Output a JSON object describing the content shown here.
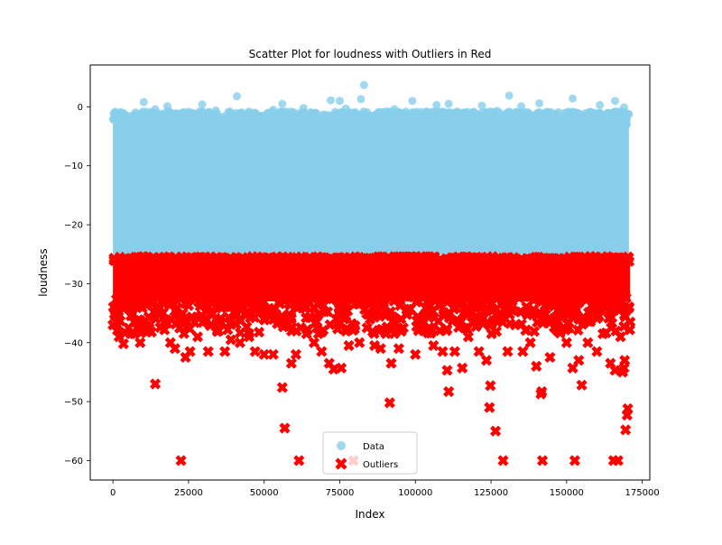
{
  "chart_data": {
    "type": "scatter",
    "title": "Scatter Plot for loudness with Outliers in Red",
    "xlabel": "Index",
    "ylabel": "loudness",
    "xlim": [
      -7500,
      177500
    ],
    "ylim": [
      -63.3,
      7.1
    ],
    "xticks": [
      0,
      25000,
      50000,
      75000,
      100000,
      125000,
      150000,
      175000
    ],
    "xtick_labels": [
      "0",
      "25000",
      "50000",
      "75000",
      "100000",
      "125000",
      "150000",
      "175000"
    ],
    "yticks": [
      0,
      -10,
      -20,
      -30,
      -40,
      -50,
      -60
    ],
    "ytick_labels": [
      "0",
      "−10",
      "−20",
      "−30",
      "−40",
      "−50",
      "−60"
    ],
    "grid": false,
    "legend_position": "lower-center",
    "colors": {
      "data": "#87CEEB",
      "outliers": "#FF0000"
    },
    "series": [
      {
        "name": "Data",
        "marker": "circle",
        "band": {
          "x_range": [
            0,
            170600
          ],
          "y_range": [
            -25.0,
            -2.3
          ]
        },
        "points": [
          [
            10200,
            0.8
          ],
          [
            18000,
            0.1
          ],
          [
            29500,
            0.4
          ],
          [
            41000,
            1.8
          ],
          [
            45000,
            -0.8
          ],
          [
            53000,
            -0.5
          ],
          [
            56000,
            0.5
          ],
          [
            59000,
            -1.2
          ],
          [
            63000,
            -0.2
          ],
          [
            72000,
            1.1
          ],
          [
            75000,
            1.0
          ],
          [
            82000,
            1.3
          ],
          [
            83000,
            3.7
          ],
          [
            99000,
            1.0
          ],
          [
            107000,
            0.3
          ],
          [
            111000,
            0.5
          ],
          [
            122000,
            0.2
          ],
          [
            131000,
            1.9
          ],
          [
            135000,
            0.1
          ],
          [
            141000,
            0.6
          ],
          [
            152000,
            1.4
          ],
          [
            161000,
            0.3
          ],
          [
            166000,
            1.0
          ],
          [
            169000,
            -0.1
          ],
          [
            4000,
            -1.5
          ],
          [
            14000,
            -0.4
          ],
          [
            21000,
            -1.1
          ],
          [
            34000,
            -0.6
          ],
          [
            67000,
            -1.0
          ],
          [
            77000,
            -0.3
          ],
          [
            88000,
            -0.9
          ],
          [
            93000,
            -0.4
          ],
          [
            117000,
            -1.3
          ],
          [
            127000,
            -0.7
          ],
          [
            144000,
            -0.9
          ],
          [
            158000,
            -1.0
          ],
          [
            19000,
            -19.0
          ],
          [
            17500,
            -20.0
          ],
          [
            20000,
            -21.0
          ],
          [
            15000,
            -23.0
          ],
          [
            16000,
            -24.5
          ],
          [
            18500,
            -22.5
          ],
          [
            37500,
            -24.0
          ],
          [
            13000,
            -25.8
          ],
          [
            12000,
            -26.0
          ]
        ]
      },
      {
        "name": "Outliers",
        "marker": "x",
        "band": {
          "x_range": [
            0,
            171000
          ],
          "y_range": [
            -33.0,
            -25.3
          ]
        },
        "points": [
          [
            0,
            -37.0
          ],
          [
            2000,
            -39.0
          ],
          [
            3500,
            -40.2
          ],
          [
            7000,
            -38.5
          ],
          [
            9000,
            -40.0
          ],
          [
            12000,
            -37.5
          ],
          [
            14000,
            -47.0
          ],
          [
            17000,
            -36.5
          ],
          [
            19000,
            -40.0
          ],
          [
            20500,
            -41.0
          ],
          [
            22500,
            -60.0
          ],
          [
            24000,
            -42.5
          ],
          [
            25500,
            -41.5
          ],
          [
            28000,
            -39.0
          ],
          [
            31500,
            -41.5
          ],
          [
            35000,
            -38.0
          ],
          [
            37000,
            -41.5
          ],
          [
            39000,
            -39.5
          ],
          [
            42000,
            -40.0
          ],
          [
            45000,
            -39.0
          ],
          [
            47000,
            -41.5
          ],
          [
            50000,
            -42.0
          ],
          [
            53000,
            -42.0
          ],
          [
            56000,
            -47.6
          ],
          [
            56800,
            -54.5
          ],
          [
            59000,
            -43.5
          ],
          [
            60500,
            -42.0
          ],
          [
            61500,
            -60.0
          ],
          [
            64000,
            -38.5
          ],
          [
            66500,
            -40.0
          ],
          [
            69000,
            -41.5
          ],
          [
            71500,
            -43.5
          ],
          [
            73000,
            -44.5
          ],
          [
            75500,
            -44.3
          ],
          [
            78000,
            -40.5
          ],
          [
            79500,
            -60.0
          ],
          [
            81500,
            -40.0
          ],
          [
            84000,
            -37.5
          ],
          [
            86500,
            -40.5
          ],
          [
            88500,
            -41.0
          ],
          [
            91500,
            -50.2
          ],
          [
            92000,
            -43.5
          ],
          [
            94500,
            -41.0
          ],
          [
            96000,
            -37.5
          ],
          [
            100000,
            -42.0
          ],
          [
            103000,
            -38.0
          ],
          [
            106000,
            -40.5
          ],
          [
            109000,
            -41.5
          ],
          [
            110500,
            -44.7
          ],
          [
            111000,
            -48.3
          ],
          [
            113000,
            -41.5
          ],
          [
            115500,
            -44.3
          ],
          [
            117500,
            -39.0
          ],
          [
            121000,
            -41.5
          ],
          [
            123500,
            -43.0
          ],
          [
            124500,
            -51.0
          ],
          [
            124800,
            -47.3
          ],
          [
            126500,
            -55.0
          ],
          [
            129000,
            -60.0
          ],
          [
            130500,
            -41.5
          ],
          [
            133000,
            -37.0
          ],
          [
            135500,
            -41.5
          ],
          [
            138000,
            -40.0
          ],
          [
            140000,
            -44.0
          ],
          [
            141500,
            -48.7
          ],
          [
            141800,
            -48.3
          ],
          [
            142000,
            -60.0
          ],
          [
            144500,
            -42.5
          ],
          [
            147000,
            -38.0
          ],
          [
            150000,
            -40.0
          ],
          [
            152000,
            -44.3
          ],
          [
            152700,
            -60.0
          ],
          [
            154000,
            -43.0
          ],
          [
            155000,
            -47.2
          ],
          [
            157000,
            -40.0
          ],
          [
            160000,
            -41.5
          ],
          [
            162000,
            -38.5
          ],
          [
            164500,
            -43.5
          ],
          [
            165500,
            -60.0
          ],
          [
            166000,
            -44.7
          ],
          [
            167000,
            -60.0
          ],
          [
            167800,
            -39.0
          ],
          [
            168500,
            -45.0
          ],
          [
            169000,
            -44.3
          ],
          [
            169200,
            -43.0
          ],
          [
            169500,
            -54.8
          ],
          [
            170000,
            -52.3
          ],
          [
            170200,
            -51.2
          ],
          [
            171000,
            -36.5
          ]
        ]
      }
    ]
  }
}
